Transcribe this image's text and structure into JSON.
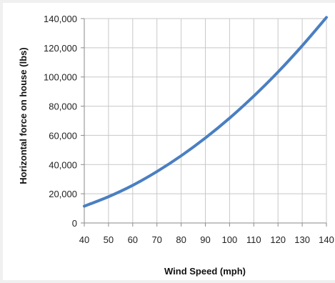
{
  "chart_data": {
    "type": "line",
    "title": "",
    "xlabel": "Wind Speed (mph)",
    "ylabel": "Horizontal force on house (lbs)",
    "x_ticks": [
      "40",
      "50",
      "60",
      "70",
      "80",
      "90",
      "100",
      "110",
      "120",
      "130",
      "140"
    ],
    "y_ticks": [
      "0",
      "20,000",
      "40,000",
      "60,000",
      "80,000",
      "100,000",
      "120,000",
      "140,000"
    ],
    "xlim": [
      40,
      140
    ],
    "ylim": [
      0,
      140000
    ],
    "grid": true,
    "legend": "none",
    "series": [
      {
        "color": "#4a7fc1",
        "x": [
          40,
          50,
          60,
          70,
          80,
          90,
          100,
          110,
          120,
          130,
          140
        ],
        "y": [
          11500,
          18000,
          25800,
          35200,
          46000,
          58200,
          71800,
          86900,
          103400,
          121400,
          140800
        ]
      }
    ]
  }
}
